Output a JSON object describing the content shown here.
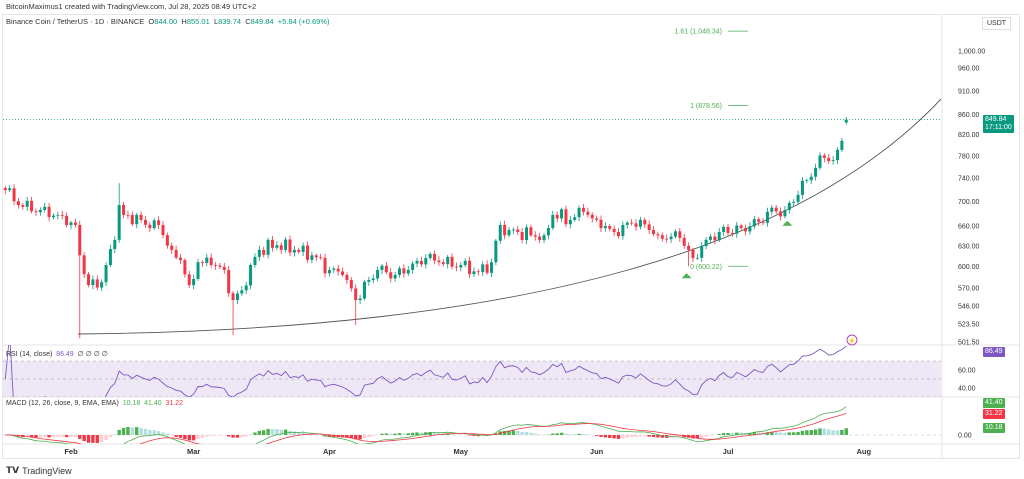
{
  "header": {
    "credit": "BitcoinMaximus1 created with TradingView.com, Jul 28, 2025 08:49 UTC+2",
    "symbol": "Binance Coin / TetherUS · 1D · BINANCE",
    "open_label": "O",
    "open": "844.00",
    "high_label": "H",
    "high": "855.01",
    "low_label": "L",
    "low": "839.74",
    "close_label": "C",
    "close": "849.84",
    "change": "+5.84 (+0.69%)",
    "currency": "USDT"
  },
  "last_price": {
    "price": "849.84",
    "countdown": "17:11:00"
  },
  "colors": {
    "up": "#089981",
    "down": "#f23645",
    "rsi": "#7e57c2",
    "rsi_band": "#ede7f6",
    "fib": "#4caf50",
    "macd_up": "#4caf50",
    "macd_down": "#f23645",
    "signal": "#f23645"
  },
  "chart_data": {
    "type": "candlestick",
    "scale": "log",
    "grid": false,
    "price_axis": [
      "1,000.00",
      "960.00",
      "910.00",
      "860.00",
      "820.00",
      "780.00",
      "740.00",
      "700.00",
      "660.00",
      "630.00",
      "600.00",
      "570.00",
      "546.00",
      "523.50",
      "501.50"
    ],
    "time_axis": [
      {
        "label": "Feb",
        "date": "2025-02-01"
      },
      {
        "label": "Mar",
        "date": "2025-03-01"
      },
      {
        "label": "Apr",
        "date": "2025-04-01"
      },
      {
        "label": "May",
        "date": "2025-05-01"
      },
      {
        "label": "Jun",
        "date": "2025-06-01"
      },
      {
        "label": "Jul",
        "date": "2025-07-01"
      },
      {
        "label": "Aug",
        "date": "2025-08-01"
      }
    ],
    "close_keypoints": [
      [
        "2025-01-17",
        719
      ],
      [
        "2025-01-20",
        694
      ],
      [
        "2025-01-25",
        686
      ],
      [
        "2025-01-29",
        678
      ],
      [
        "2025-02-02",
        662
      ],
      [
        "2025-02-03",
        616
      ],
      [
        "2025-02-05",
        574
      ],
      [
        "2025-02-08",
        578
      ],
      [
        "2025-02-09",
        602
      ],
      [
        "2025-02-11",
        639
      ],
      [
        "2025-02-12",
        694
      ],
      [
        "2025-02-13",
        678
      ],
      [
        "2025-02-17",
        670
      ],
      [
        "2025-02-19",
        657
      ],
      [
        "2025-02-21",
        662
      ],
      [
        "2025-02-24",
        624
      ],
      [
        "2025-02-26",
        609
      ],
      [
        "2025-02-28",
        574
      ],
      [
        "2025-03-02",
        606
      ],
      [
        "2025-03-05",
        602
      ],
      [
        "2025-03-08",
        595
      ],
      [
        "2025-03-10",
        554
      ],
      [
        "2025-03-12",
        567
      ],
      [
        "2025-03-14",
        602
      ],
      [
        "2025-03-16",
        624
      ],
      [
        "2025-03-20",
        631
      ],
      [
        "2025-03-24",
        624
      ],
      [
        "2025-03-28",
        616
      ],
      [
        "2025-04-01",
        595
      ],
      [
        "2025-04-04",
        588
      ],
      [
        "2025-04-07",
        554
      ],
      [
        "2025-04-10",
        581
      ],
      [
        "2025-04-12",
        595
      ],
      [
        "2025-04-16",
        588
      ],
      [
        "2025-04-19",
        595
      ],
      [
        "2025-04-23",
        612
      ],
      [
        "2025-04-26",
        606
      ],
      [
        "2025-05-01",
        602
      ],
      [
        "2025-05-05",
        592
      ],
      [
        "2025-05-08",
        606
      ],
      [
        "2025-05-10",
        662
      ],
      [
        "2025-05-12",
        654
      ],
      [
        "2025-05-17",
        646
      ],
      [
        "2025-05-20",
        646
      ],
      [
        "2025-05-22",
        678
      ],
      [
        "2025-05-26",
        670
      ],
      [
        "2025-05-29",
        683
      ],
      [
        "2025-06-02",
        657
      ],
      [
        "2025-06-05",
        651
      ],
      [
        "2025-06-07",
        662
      ],
      [
        "2025-06-11",
        670
      ],
      [
        "2025-06-15",
        646
      ],
      [
        "2025-06-20",
        642
      ],
      [
        "2025-06-22",
        624
      ],
      [
        "2025-06-23",
        612
      ],
      [
        "2025-06-26",
        639
      ],
      [
        "2025-06-29",
        651
      ],
      [
        "2025-07-04",
        657
      ],
      [
        "2025-07-08",
        667
      ],
      [
        "2025-07-10",
        683
      ],
      [
        "2025-07-14",
        686
      ],
      [
        "2025-07-17",
        711
      ],
      [
        "2025-07-19",
        736
      ],
      [
        "2025-07-21",
        758
      ],
      [
        "2025-07-23",
        776
      ],
      [
        "2025-07-25",
        772
      ],
      [
        "2025-07-26",
        791
      ],
      [
        "2025-07-28",
        849.84
      ]
    ],
    "wick_extremes": {
      "lows": [
        [
          "2025-02-03",
          506
        ],
        [
          "2025-03-10",
          510
        ],
        [
          "2025-04-07",
          522
        ],
        [
          "2025-06-22",
          600.22
        ]
      ],
      "highs": [
        [
          "2025-02-12",
          731
        ]
      ]
    },
    "fib_levels": [
      {
        "label": "1.61 (1,048.34)",
        "price": 1048.34
      },
      {
        "label": "1 (878.56)",
        "price": 878.56
      },
      {
        "label": "0 (600.22)",
        "price": 600.22
      }
    ],
    "signals": [
      {
        "date": "2025-06-22",
        "type": "buy"
      },
      {
        "date": "2025-07-15",
        "type": "buy"
      }
    ]
  },
  "rsi": {
    "title": "RSI (14, close)",
    "value": "86.49",
    "extras": "∅ ∅ ∅ ∅",
    "axis": [
      "60.00",
      "40.00"
    ]
  },
  "macd": {
    "title": "MACD (12, 26, close, 9, EMA, EMA)",
    "hist": "10.18",
    "macd": "41.40",
    "signal": "31.22",
    "zero": "0.00"
  },
  "footer": {
    "brand": "TradingView"
  }
}
